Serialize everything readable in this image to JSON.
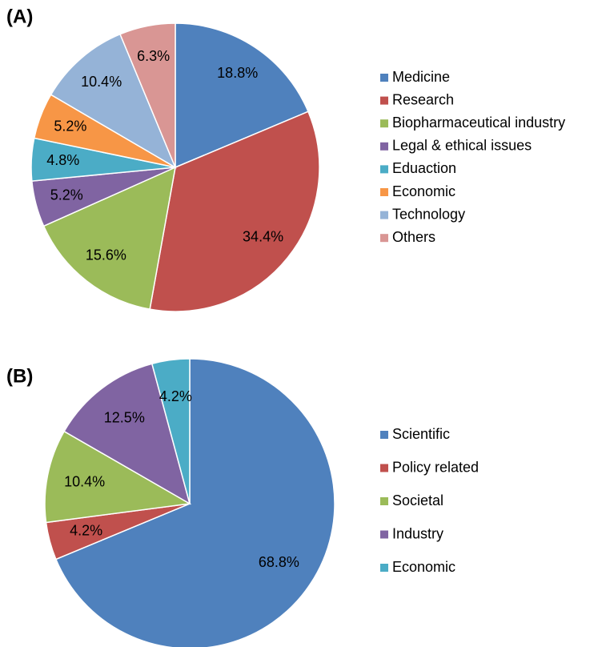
{
  "chart_data": [
    {
      "type": "pie",
      "title": "(A)",
      "categories": [
        "Medicine",
        "Research",
        "Biopharmaceutical industry",
        "Legal & ethical issues",
        "Eduaction",
        "Economic",
        "Technology",
        "Others"
      ],
      "values": [
        18.8,
        34.4,
        15.6,
        5.2,
        4.8,
        5.2,
        10.4,
        6.3
      ],
      "value_labels": [
        "18.8%",
        "34.4%",
        "15.6%",
        "5.2%",
        "4.8%",
        "5.2%",
        "10.4%",
        "6.3%"
      ],
      "colors": [
        "#4f81bd",
        "#c0504d",
        "#9bbb59",
        "#8064a2",
        "#4bacc6",
        "#f79646",
        "#95b3d7",
        "#d99694"
      ]
    },
    {
      "type": "pie",
      "title": "(B)",
      "categories": [
        "Scientific",
        "Policy related",
        "Societal",
        "Industry",
        "Economic"
      ],
      "values": [
        68.8,
        4.2,
        10.4,
        12.5,
        4.2
      ],
      "value_labels": [
        "68.8%",
        "4.2%",
        "10.4%",
        "12.5%",
        "4.2%"
      ],
      "colors": [
        "#4f81bd",
        "#c0504d",
        "#9bbb59",
        "#8064a2",
        "#4bacc6"
      ]
    }
  ]
}
